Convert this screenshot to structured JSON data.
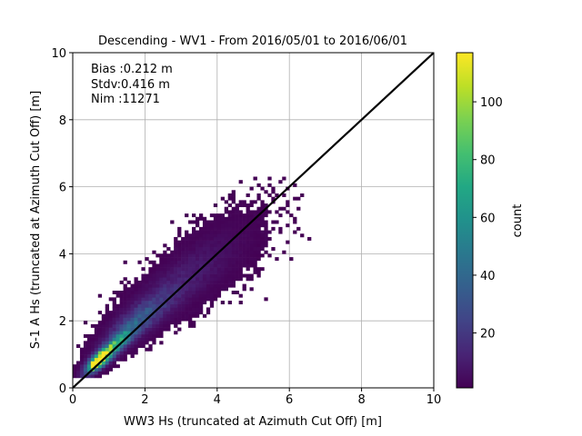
{
  "chart_data": {
    "type": "heatmap",
    "title": "Descending - WV1 - From 2016/05/01 to 2016/06/01",
    "xlabel": "WW3 Hs (truncated at Azimuth Cut Off) [m]",
    "ylabel": "S-1 A Hs (truncated at Azimuth Cut Off) [m]",
    "xlim": [
      0,
      10
    ],
    "ylim": [
      0,
      10
    ],
    "xticks": [
      "0",
      "2",
      "4",
      "6",
      "8",
      "10"
    ],
    "yticks": [
      "0",
      "2",
      "4",
      "6",
      "8",
      "10"
    ],
    "grid": true,
    "colormap": "viridis",
    "colorbar": {
      "label": "count",
      "min": 1,
      "max": 117,
      "ticks": [
        "20",
        "40",
        "60",
        "80",
        "100"
      ]
    },
    "annotations": {
      "bias": "Bias :0.212 m",
      "stdv": "Stdv:0.416 m",
      "nim": "Nim :11271"
    },
    "reference_line": {
      "from": [
        0,
        0
      ],
      "to": [
        10,
        10
      ],
      "color": "#000000"
    },
    "bin_size": 0.1,
    "clusters": [
      {
        "x": 0.7,
        "y": 0.8,
        "peak": 117,
        "sx": 0.22,
        "sy": 0.22,
        "rho": 0.75
      },
      {
        "x": 1.1,
        "y": 1.2,
        "peak": 70,
        "sx": 0.35,
        "sy": 0.35,
        "rho": 0.85
      },
      {
        "x": 1.8,
        "y": 2.0,
        "peak": 28,
        "sx": 0.6,
        "sy": 0.55,
        "rho": 0.82
      },
      {
        "x": 2.8,
        "y": 3.0,
        "peak": 9,
        "sx": 0.9,
        "sy": 0.8,
        "rho": 0.78
      },
      {
        "x": 4.0,
        "y": 4.0,
        "peak": 3,
        "sx": 0.9,
        "sy": 0.9,
        "rho": 0.6
      }
    ],
    "outliers": [
      {
        "x": 5.0,
        "y": 6.2
      },
      {
        "x": 5.5,
        "y": 5.8
      },
      {
        "x": 5.2,
        "y": 5.4
      },
      {
        "x": 6.5,
        "y": 4.4
      },
      {
        "x": 6.3,
        "y": 4.5
      },
      {
        "x": 6.0,
        "y": 3.8
      },
      {
        "x": 6.1,
        "y": 4.6
      },
      {
        "x": 5.9,
        "y": 4.3
      },
      {
        "x": 5.3,
        "y": 2.6
      },
      {
        "x": 6.0,
        "y": 5.1
      },
      {
        "x": 4.5,
        "y": 5.4
      },
      {
        "x": 2.7,
        "y": 4.9
      },
      {
        "x": 1.4,
        "y": 3.7
      },
      {
        "x": 0.7,
        "y": 2.7
      },
      {
        "x": 5.8,
        "y": 4.0
      }
    ],
    "colors": {
      "axis": "#000000",
      "grid": "#b0b0b0",
      "reference": "#000000"
    }
  }
}
